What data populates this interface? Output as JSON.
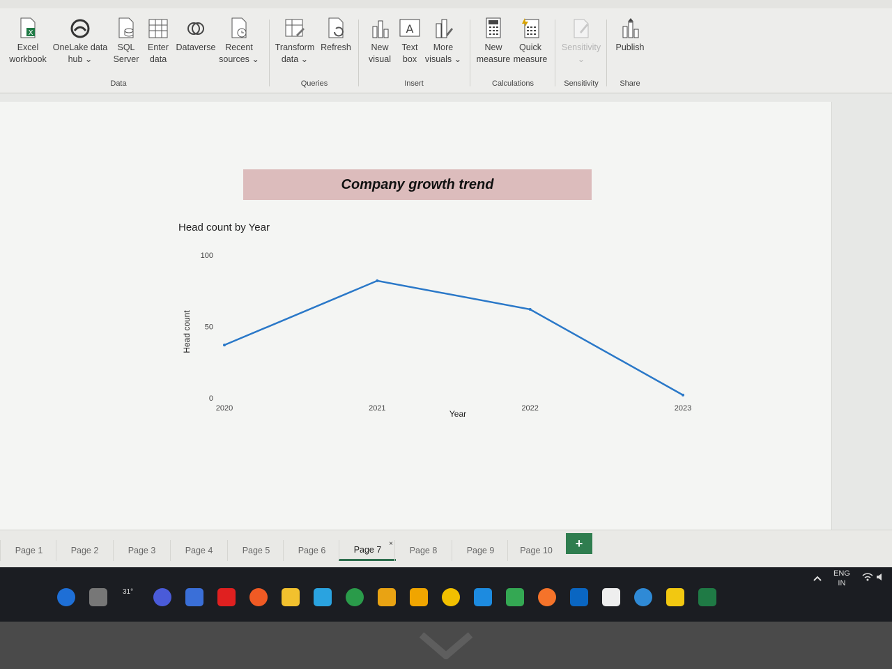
{
  "ribbon": {
    "groups": [
      {
        "label": "Data",
        "buttons": [
          {
            "label": "Excel\nworkbook",
            "icon": "excel-icon"
          },
          {
            "label": "OneLake data\nhub ⌄",
            "icon": "onelake-icon"
          },
          {
            "label": "SQL\nServer",
            "icon": "sql-server-icon"
          },
          {
            "label": "Enter\ndata",
            "icon": "table-icon"
          },
          {
            "label": "Dataverse",
            "icon": "dataverse-icon"
          },
          {
            "label": "Recent\nsources ⌄",
            "icon": "recent-sources-icon"
          }
        ]
      },
      {
        "label": "Queries",
        "buttons": [
          {
            "label": "Transform\ndata ⌄",
            "icon": "transform-icon"
          },
          {
            "label": "Refresh",
            "icon": "refresh-icon"
          }
        ]
      },
      {
        "label": "Insert",
        "buttons": [
          {
            "label": "New\nvisual",
            "icon": "chart-icon"
          },
          {
            "label": "Text\nbox",
            "icon": "textbox-icon"
          },
          {
            "label": "More\nvisuals ⌄",
            "icon": "more-visuals-icon"
          }
        ]
      },
      {
        "label": "Calculations",
        "buttons": [
          {
            "label": "New\nmeasure",
            "icon": "calculator-icon"
          },
          {
            "label": "Quick\nmeasure",
            "icon": "quick-measure-icon"
          }
        ]
      },
      {
        "label": "Sensitivity",
        "buttons": [
          {
            "label": "Sensitivity\n⌄",
            "icon": "sensitivity-icon"
          }
        ]
      },
      {
        "label": "Share",
        "buttons": [
          {
            "label": "Publish",
            "icon": "publish-icon"
          }
        ]
      }
    ]
  },
  "report": {
    "banner_title": "Company growth trend"
  },
  "chart_data": {
    "type": "line",
    "title": "Head count by Year",
    "xlabel": "Year",
    "ylabel": "Head count",
    "categories": [
      "2020",
      "2021",
      "2022",
      "2023"
    ],
    "series": [
      {
        "values": [
          37,
          82,
          62,
          2
        ],
        "color": "#2a78c8"
      }
    ],
    "yticks": [
      "0",
      "50",
      "100"
    ],
    "ylim": [
      0,
      100
    ],
    "grid": false
  },
  "tabs": {
    "items": [
      "Page 1",
      "Page 2",
      "Page 3",
      "Page 4",
      "Page 5",
      "Page 6",
      "Page 7",
      "Page 8",
      "Page 9",
      "Page 10"
    ],
    "active": "Page 7",
    "close_glyph": "×",
    "add_glyph": "+"
  },
  "taskbar": {
    "weather": "31°",
    "lang_top": "ENG",
    "lang_bottom": "IN",
    "icons": [
      "bing-icon",
      "task-view-icon",
      "weather-icon",
      "zoom-icon",
      "media-player-icon",
      "opera-icon",
      "brave-icon",
      "file-explorer-icon",
      "telegram-icon",
      "chrome-dev-icon",
      "chrome-icon",
      "chrome-canary-icon",
      "sticky-notes-icon",
      "edge-icon",
      "google-drive-icon",
      "firefox-icon",
      "linkedin-icon",
      "github-icon",
      "vscode-icon",
      "power-bi-icon",
      "excel-taskbar-icon"
    ]
  }
}
